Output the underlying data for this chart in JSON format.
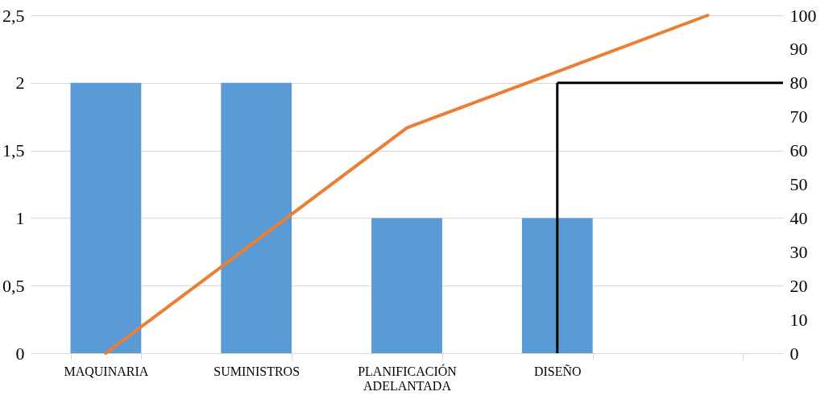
{
  "chart_data": {
    "type": "bar",
    "categories": [
      "MAQUINARIA",
      "SUMINISTROS",
      "PLANIFICACIÓN ADELANTADA",
      "DISEÑO",
      null
    ],
    "series": [
      {
        "color": "#5b9bd5",
        "values": [
          2,
          2,
          1,
          1,
          null
        ]
      },
      {
        "type": "line",
        "axis": "y2",
        "color": "#ed7d31",
        "values": [
          0,
          33.3,
          66.7,
          83.3,
          100
        ]
      }
    ],
    "ylim": [
      0,
      2.5
    ],
    "yticks": [
      0,
      {
        "value": 0.5,
        "label": "0,5"
      },
      1,
      {
        "value": 1.5,
        "label": "1,5"
      },
      2,
      {
        "value": 2.5,
        "label": "2,5"
      }
    ],
    "y2lim": [
      0,
      100
    ],
    "y2ticks": [
      0,
      10,
      20,
      30,
      40,
      50,
      60,
      70,
      80,
      90,
      100
    ],
    "ref_lines": [
      {
        "axis": "x",
        "value": "DISEÑO",
        "color": "#000000"
      },
      {
        "axis": "y2",
        "value": 80,
        "color": "#000000"
      }
    ],
    "grid": "y",
    "marker": "none",
    "line_style": "solid"
  }
}
